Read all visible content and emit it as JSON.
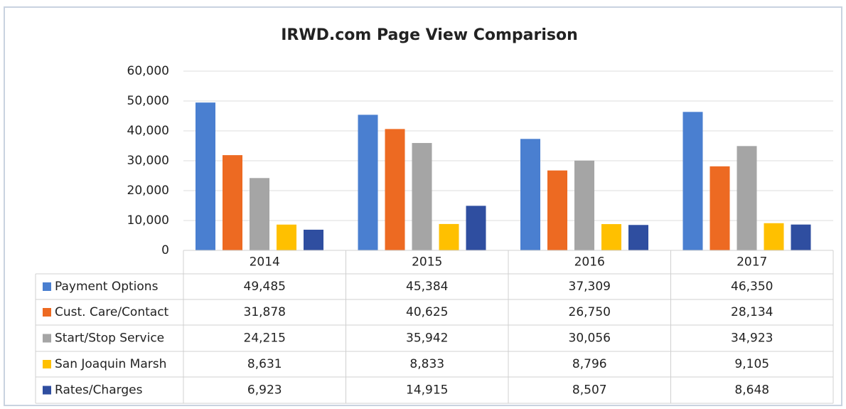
{
  "chart_data": {
    "type": "bar",
    "title": "IRWD.com Page View Comparison",
    "categories": [
      "2014",
      "2015",
      "2016",
      "2017"
    ],
    "series": [
      {
        "name": "Payment Options",
        "color": "#4a7fd0",
        "values": [
          49485,
          45384,
          37309,
          46350
        ],
        "value_labels": [
          "49,485",
          "45,384",
          "37,309",
          "46,350"
        ]
      },
      {
        "name": "Cust. Care/Contact",
        "color": "#ed6a22",
        "values": [
          31878,
          40625,
          26750,
          28134
        ],
        "value_labels": [
          "31,878",
          "40,625",
          "26,750",
          "28,134"
        ]
      },
      {
        "name": "Start/Stop Service",
        "color": "#a5a5a5",
        "values": [
          24215,
          35942,
          30056,
          34923
        ],
        "value_labels": [
          "24,215",
          "35,942",
          "30,056",
          "34,923"
        ]
      },
      {
        "name": "San Joaquin Marsh",
        "color": "#ffc000",
        "values": [
          8631,
          8833,
          8796,
          9105
        ],
        "value_labels": [
          "8,631",
          "8,833",
          "8,796",
          "9,105"
        ]
      },
      {
        "name": "Rates/Charges",
        "color": "#2f4ea0",
        "values": [
          6923,
          14915,
          8507,
          8648
        ],
        "value_labels": [
          "6,923",
          "14,915",
          "8,507",
          "8,648"
        ]
      }
    ],
    "ylim": [
      0,
      60000
    ],
    "yticks": [
      0,
      {
        "value": 10000,
        "label": "10,000"
      },
      {
        "value": 20000,
        "label": "20,000"
      },
      {
        "value": 30000,
        "label": "30,000"
      },
      {
        "value": 40000,
        "label": "40,000"
      },
      {
        "value": 50000,
        "label": "50,000"
      },
      {
        "value": 60000,
        "label": "60,000"
      }
    ],
    "grid": true
  }
}
